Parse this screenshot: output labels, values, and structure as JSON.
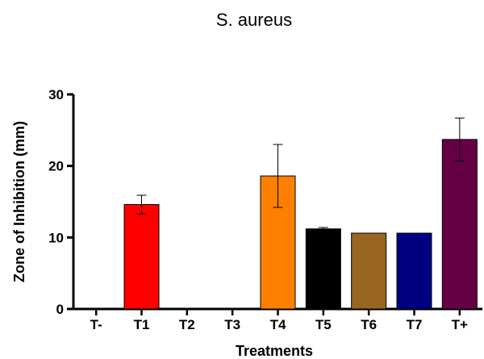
{
  "chart_data": {
    "type": "bar",
    "title": "S. aureus",
    "xlabel": "Treatments",
    "ylabel": "Zone of Inhibition (mm)",
    "ylim": [
      0,
      30
    ],
    "yticks": [
      0,
      10,
      20,
      30
    ],
    "grid": false,
    "categories": [
      "T-",
      "T1",
      "T2",
      "T3",
      "T4",
      "T5",
      "T6",
      "T7",
      "T+"
    ],
    "values": [
      0,
      14.6,
      0,
      0,
      18.6,
      11.2,
      10.6,
      10.6,
      23.7
    ],
    "errors": [
      0,
      1.3,
      0,
      0,
      4.4,
      0.2,
      0,
      0,
      3.0
    ],
    "colors": [
      "#ff0000",
      "#ff0000",
      "#ff0000",
      "#ff0000",
      "#ff7f00",
      "#000000",
      "#996622",
      "#000080",
      "#660044"
    ]
  }
}
